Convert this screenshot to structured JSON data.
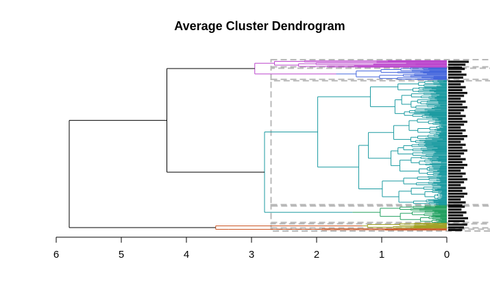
{
  "chart_data": {
    "type": "dendrogram",
    "orientation": "horizontal",
    "title": "Average Cluster Dendrogram",
    "xlabel": "",
    "ylabel": "",
    "x_axis": {
      "direction": "reversed",
      "lim": [
        6,
        0
      ],
      "ticks": [
        "6",
        "5",
        "4",
        "3",
        "2",
        "1",
        "0"
      ],
      "tick_values": [
        6,
        5,
        4,
        3,
        2,
        1,
        0
      ]
    },
    "cut_height": 2.7,
    "leaf_count_approx": 300,
    "leaf_labels_legible": false,
    "merges": [
      {
        "name": "root",
        "height": 5.8,
        "children": [
          "main-group",
          "orange-group"
        ]
      },
      {
        "name": "main-group",
        "height": 4.3,
        "children": [
          "magenta-blue-group",
          "teal-green-group"
        ]
      },
      {
        "name": "magenta-blue-group",
        "height": 2.95,
        "children": [
          "magenta-cluster",
          "blue-cluster"
        ]
      },
      {
        "name": "teal-green-group",
        "height": 2.8,
        "children": [
          "teal-cluster",
          "green-cluster"
        ]
      },
      {
        "name": "orange-group",
        "height": 3.55,
        "children": [
          "orange-cluster",
          "olive-cluster"
        ]
      }
    ],
    "clusters": [
      {
        "name": "magenta-cluster",
        "color": "#bb44cc",
        "height": 2.95,
        "leaf_fraction": 0.04
      },
      {
        "name": "blue-cluster",
        "color": "#4466dd",
        "height": 1.7,
        "leaf_fraction": 0.07
      },
      {
        "name": "teal-cluster",
        "color": "#1a9aa0",
        "height": 2.4,
        "leaf_fraction": 0.7
      },
      {
        "name": "green-cluster",
        "color": "#22a060",
        "height": 1.45,
        "leaf_fraction": 0.1
      },
      {
        "name": "olive-cluster",
        "color": "#a0a020",
        "height": 1.3,
        "leaf_fraction": 0.03
      },
      {
        "name": "orange-cluster",
        "color": "#cc5522",
        "height": 3.35,
        "leaf_fraction": 0.01
      }
    ],
    "colors": {
      "magenta": "#bb44cc",
      "blue": "#4466dd",
      "teal": "#1a9aa0",
      "green": "#22a060",
      "olive": "#a0a020",
      "orange": "#cc5522",
      "cut_box": "#b8b8b8",
      "axis": "#000000"
    }
  }
}
